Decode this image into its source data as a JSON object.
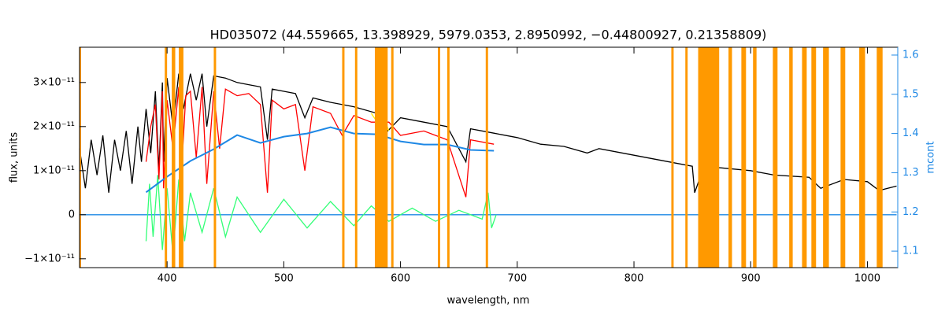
{
  "chart_data": {
    "type": "line",
    "title": "HD035072   (44.559665, 13.398929, 5979.0353, 2.8950992, −0.44800927, 0.21358809)",
    "xlabel": "wavelength, nm",
    "ylabel": "flux, units",
    "y2label": "mcont",
    "xlim": [
      325,
      1026
    ],
    "xticks": [
      400,
      500,
      600,
      700,
      800,
      900,
      1000
    ],
    "ylim": [
      -1.2e-11,
      3.8e-11
    ],
    "yticks": [
      {
        "value": -1e-11,
        "label": "−1×10⁻¹¹"
      },
      0,
      {
        "value": 1e-11,
        "label": "1×10⁻¹¹"
      },
      {
        "value": 2e-11,
        "label": "2×10⁻¹¹"
      },
      {
        "value": 3e-11,
        "label": "3×10⁻¹¹"
      }
    ],
    "y2lim": [
      1.058,
      1.62
    ],
    "y2ticks": [
      1.1,
      1.2,
      1.3,
      1.4,
      1.5,
      1.6
    ],
    "y2color": "#1e88e5",
    "mask_color": "#ff9900",
    "masks": [
      [
        325,
        326
      ],
      [
        398,
        400
      ],
      [
        404,
        407
      ],
      [
        410,
        414
      ],
      [
        440,
        442
      ],
      [
        550,
        552
      ],
      [
        561,
        563
      ],
      [
        578,
        589
      ],
      [
        592,
        594
      ],
      [
        632,
        634
      ],
      [
        640,
        642
      ],
      [
        673,
        675
      ],
      [
        832,
        834
      ],
      [
        844,
        846
      ],
      [
        855,
        873
      ],
      [
        881,
        884
      ],
      [
        892,
        896
      ],
      [
        902,
        905
      ],
      [
        919,
        923
      ],
      [
        933,
        936
      ],
      [
        944,
        948
      ],
      [
        952,
        956
      ],
      [
        962,
        967
      ],
      [
        977,
        981
      ],
      [
        993,
        998
      ],
      [
        1008,
        1013
      ]
    ],
    "series": [
      {
        "color": "#000000",
        "x": [
          325,
          330,
          335,
          340,
          345,
          350,
          355,
          360,
          365,
          370,
          375,
          378,
          382,
          386,
          390,
          393,
          396,
          397,
          400,
          405,
          410,
          414,
          420,
          425,
          430,
          434,
          440,
          450,
          460,
          470,
          480,
          486,
          490,
          500,
          510,
          518,
          525,
          540,
          560,
          580,
          589,
          600,
          620,
          640,
          656,
          660,
          680,
          700,
          720,
          740,
          760,
          770,
          800,
          820,
          850,
          852,
          860,
          900,
          920,
          950,
          960,
          980,
          1000,
          1010,
          1025
        ],
        "values": [
          1.5e-11,
          6e-12,
          1.7e-11,
          9e-12,
          1.8e-11,
          5e-12,
          1.7e-11,
          1e-11,
          1.9e-11,
          7e-12,
          2e-11,
          1.2e-11,
          2.4e-11,
          1.4e-11,
          2.8e-11,
          1e-11,
          3e-11,
          1.2e-11,
          3.1e-11,
          2e-11,
          3.2e-11,
          2.4e-11,
          3.2e-11,
          2.6e-11,
          3.2e-11,
          2e-11,
          3.15e-11,
          3.1e-11,
          3e-11,
          2.95e-11,
          2.9e-11,
          1.7e-11,
          2.85e-11,
          2.8e-11,
          2.75e-11,
          2.2e-11,
          2.65e-11,
          2.55e-11,
          2.45e-11,
          2.3e-11,
          1.9e-11,
          2.2e-11,
          2.1e-11,
          2e-11,
          1.2e-11,
          1.95e-11,
          1.85e-11,
          1.75e-11,
          1.6e-11,
          1.55e-11,
          1.4e-11,
          1.5e-11,
          1.35e-11,
          1.25e-11,
          1.1e-11,
          5e-12,
          1.1e-11,
          1e-11,
          9e-12,
          8.5e-12,
          6e-12,
          8e-12,
          7.5e-12,
          5.5e-12,
          6.5e-12
        ]
      },
      {
        "color": "#ff0000",
        "x": [
          382,
          386,
          390,
          393,
          396,
          397,
          400,
          405,
          410,
          412,
          416,
          420,
          425,
          430,
          434,
          440,
          445,
          450,
          460,
          470,
          480,
          486,
          490,
          500,
          510,
          518,
          525,
          540,
          550,
          560,
          575,
          590,
          600,
          620,
          640,
          656,
          660,
          680
        ],
        "values": [
          1.2e-11,
          2e-11,
          2.5e-11,
          8e-12,
          2.8e-11,
          6e-12,
          2.6e-11,
          1.5e-11,
          2.9e-11,
          8e-12,
          2.7e-11,
          2.8e-11,
          1.3e-11,
          2.9e-11,
          7e-12,
          2.8e-11,
          1.5e-11,
          2.85e-11,
          2.7e-11,
          2.75e-11,
          2.5e-11,
          5e-12,
          2.6e-11,
          2.4e-11,
          2.5e-11,
          1e-11,
          2.45e-11,
          2.3e-11,
          1.8e-11,
          2.25e-11,
          2.1e-11,
          2.1e-11,
          1.8e-11,
          1.9e-11,
          1.7e-11,
          4e-12,
          1.7e-11,
          1.6e-11
        ]
      },
      {
        "color": "#ffee00",
        "x": [
          575,
          580,
          585,
          590
        ],
        "values": [
          2.3e-11,
          2.1e-11,
          2.25e-11,
          1.9e-11
        ]
      },
      {
        "color": "#1e88e5",
        "x": [
          325,
          380,
          680,
          1025
        ],
        "values": [
          0,
          0,
          0,
          0
        ]
      },
      {
        "color": "#33ff77",
        "x": [
          382,
          385,
          388,
          392,
          396,
          400,
          405,
          410,
          415,
          420,
          430,
          440,
          450,
          460,
          480,
          500,
          520,
          540,
          560,
          575,
          590,
          610,
          630,
          650,
          670,
          675,
          678,
          682
        ],
        "values": [
          -6e-12,
          7e-12,
          -5e-12,
          9e-12,
          -8e-12,
          6e-12,
          -9e-12,
          8e-12,
          -6e-12,
          5e-12,
          -4e-12,
          6e-12,
          -5e-12,
          4e-12,
          -4e-12,
          3.5e-12,
          -3e-12,
          3e-12,
          -2.5e-12,
          2e-12,
          -1.5e-12,
          1.5e-12,
          -1.5e-12,
          1e-12,
          -1e-12,
          5e-12,
          -3e-12,
          0
        ]
      },
      {
        "color": "#1e88e5",
        "axis": "y2",
        "x": [
          382,
          400,
          420,
          440,
          460,
          480,
          500,
          520,
          540,
          560,
          580,
          600,
          620,
          640,
          660,
          680
        ],
        "values": [
          1.25,
          1.29,
          1.33,
          1.36,
          1.396,
          1.376,
          1.392,
          1.4,
          1.416,
          1.4,
          1.398,
          1.38,
          1.372,
          1.372,
          1.358,
          1.356
        ]
      }
    ]
  }
}
